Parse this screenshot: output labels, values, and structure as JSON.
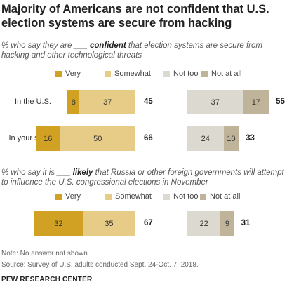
{
  "title": "Majority of Americans are not confident that U.S. election systems are secure from hacking",
  "colors": {
    "very": "#d0a123",
    "somewhat": "#e6cc86",
    "not_too": "#dcdad0",
    "not_at_all": "#bfb49a"
  },
  "chart_data": [
    {
      "type": "bar",
      "subtitle_pre": "% who say they are ___ ",
      "subtitle_key": "confident",
      "subtitle_post": " that election systems are secure from hacking and other technological threats",
      "legend": [
        "Very",
        "Somewhat",
        "Not too",
        "Not at all"
      ],
      "categories": [
        "In the U.S.",
        "In your state"
      ],
      "series": [
        {
          "name": "Very",
          "values": [
            8,
            16
          ]
        },
        {
          "name": "Somewhat",
          "values": [
            37,
            50
          ]
        },
        {
          "name": "Not too",
          "values": [
            37,
            24
          ]
        },
        {
          "name": "Not at all",
          "values": [
            17,
            10
          ]
        }
      ],
      "net_confident": [
        45,
        66
      ],
      "net_not_confident": [
        55,
        33
      ]
    },
    {
      "type": "bar",
      "subtitle_pre": "% who say it is ___ ",
      "subtitle_key": "likely",
      "subtitle_post": " that Russia or other foreign governments will attempt to influence the U.S. congressional elections in November",
      "legend": [
        "Very",
        "Somewhat",
        "Not too",
        "Not at all"
      ],
      "categories": [
        ""
      ],
      "series": [
        {
          "name": "Very",
          "values": [
            32
          ]
        },
        {
          "name": "Somewhat",
          "values": [
            35
          ]
        },
        {
          "name": "Not too",
          "values": [
            22
          ]
        },
        {
          "name": "Not at all",
          "values": [
            9
          ]
        }
      ],
      "net_likely": [
        67
      ],
      "net_not_likely": [
        31
      ]
    }
  ],
  "footer": {
    "note": "Note: No answer not shown.",
    "source": "Source: Survey of U.S. adults conducted Sept. 24-Oct. 7, 2018.",
    "brand": "PEW RESEARCH CENTER"
  }
}
